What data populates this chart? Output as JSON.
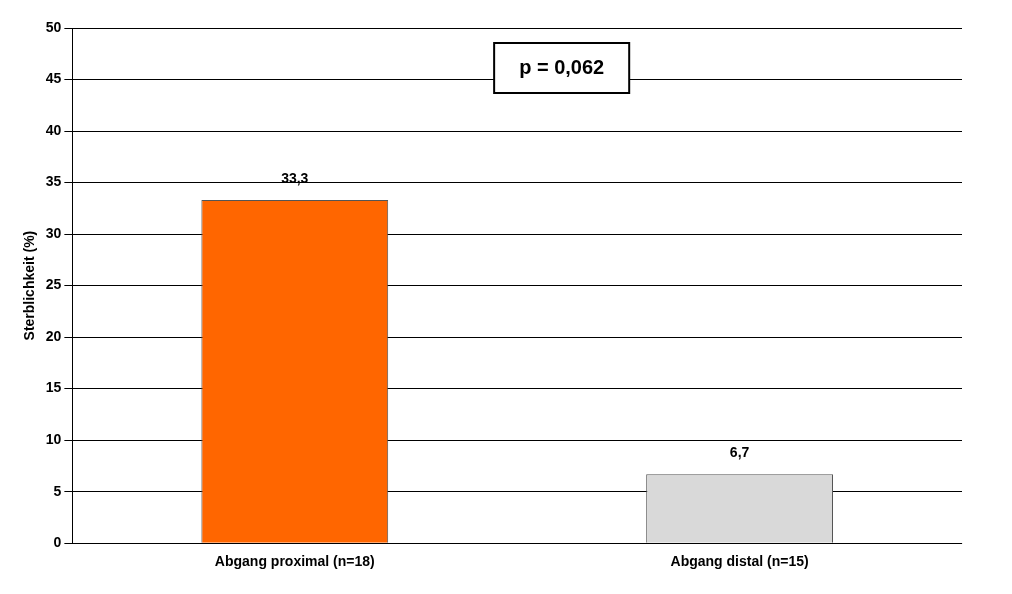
{
  "chart_data": {
    "type": "bar",
    "ylabel": "Sterblichkeit (%)",
    "categories": [
      "Abgang proximal (n=18)",
      "Abgang distal (n=15)"
    ],
    "values": [
      33.3,
      6.7
    ],
    "colors": [
      "#ff6600",
      "#d9d9d9"
    ],
    "value_labels": [
      "33,3",
      "6,7"
    ],
    "ylim": [
      0,
      50
    ],
    "yticks": [
      0,
      5,
      10,
      15,
      20,
      25,
      30,
      35,
      40,
      45,
      50
    ],
    "grid": "y",
    "legend": false,
    "annotations": [
      "p = 0,062"
    ]
  }
}
